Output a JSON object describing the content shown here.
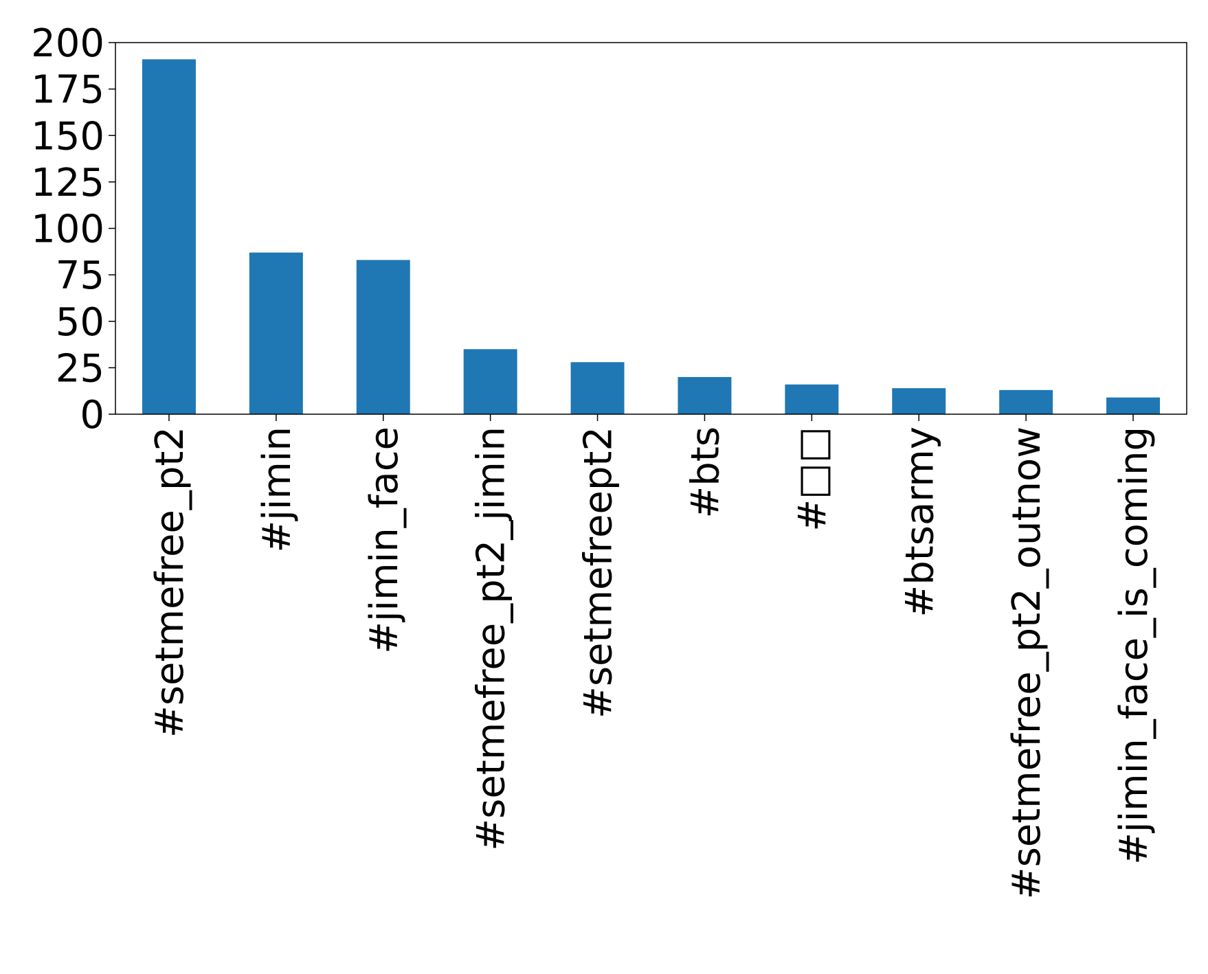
{
  "chart_data": {
    "type": "bar",
    "categories": [
      "#setmefree_pt2",
      "#jimin",
      "#jimin_face",
      "#setmefree_pt2_jimin",
      "#setmefreept2",
      "#bts",
      "#□□",
      "#btsarmy",
      "#setmefree_pt2_outnow",
      "#jimin_face_is_coming"
    ],
    "values": [
      191,
      87,
      83,
      35,
      28,
      20,
      16,
      14,
      13,
      9
    ],
    "title": "",
    "xlabel": "",
    "ylabel": "",
    "ylim": [
      0,
      200
    ],
    "yticks": [
      0,
      25,
      50,
      75,
      100,
      125,
      150,
      175,
      200
    ],
    "grid": false,
    "legend": "none",
    "bar_color": "#1f77b4"
  }
}
